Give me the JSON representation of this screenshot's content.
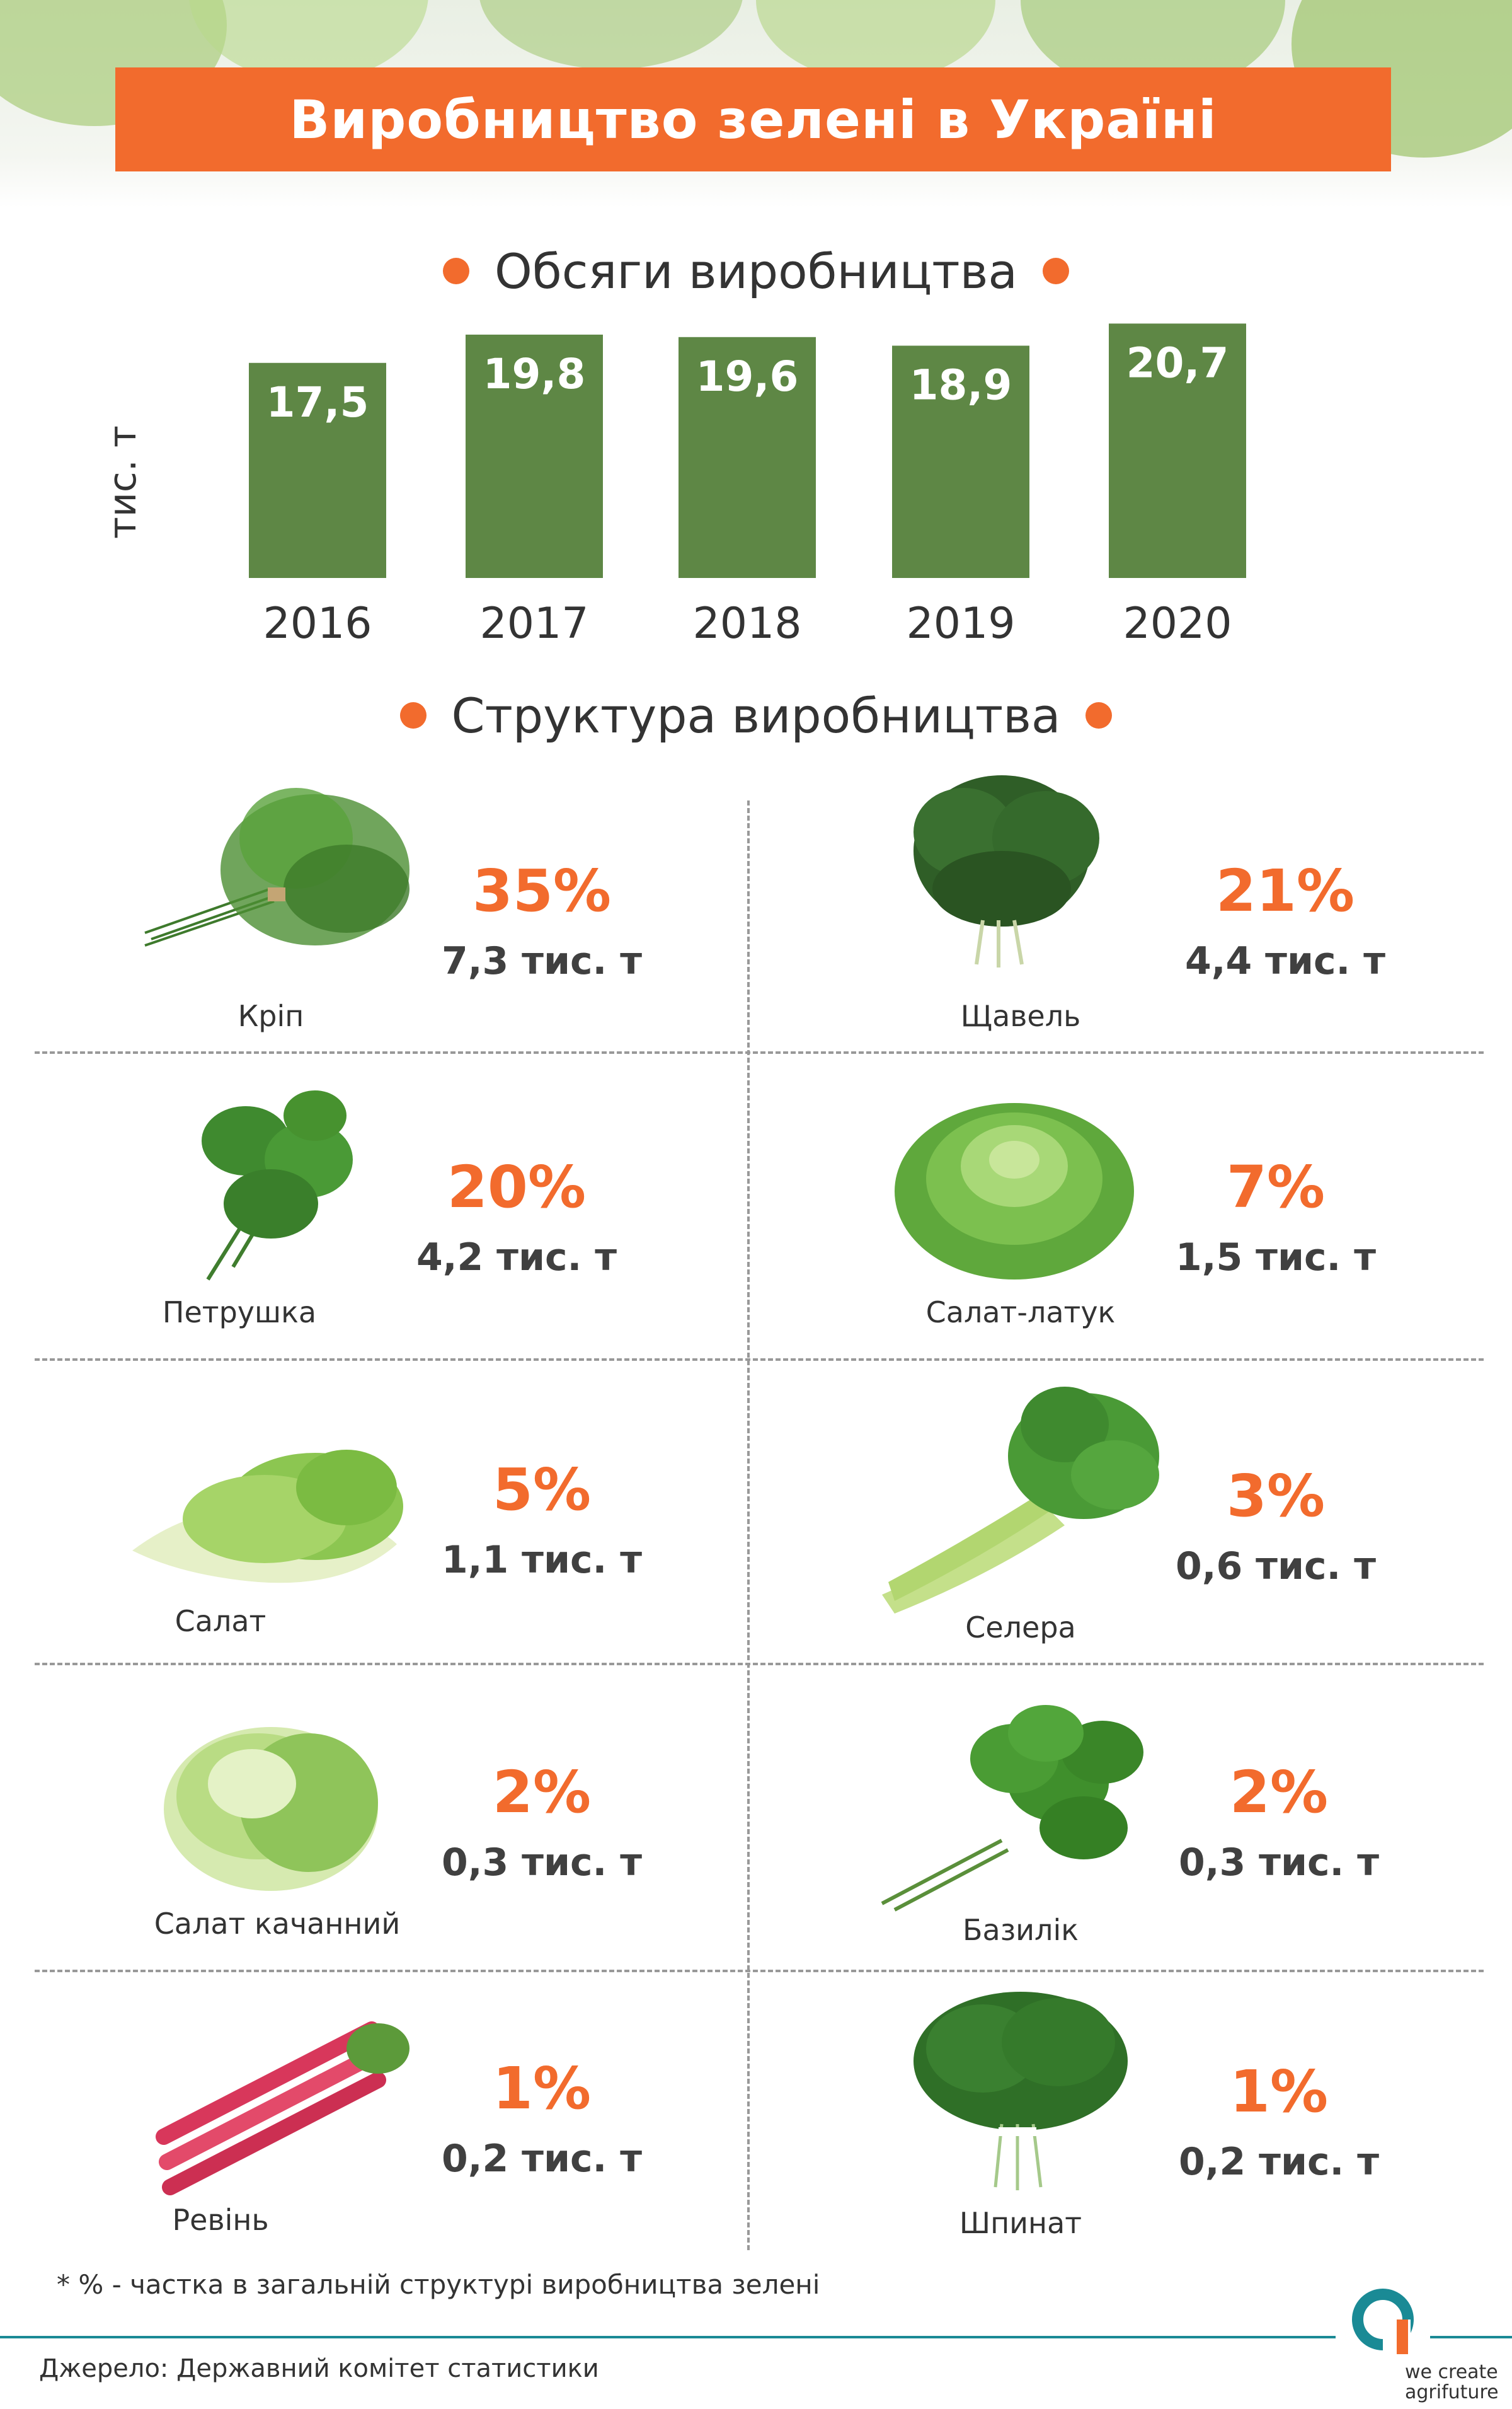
{
  "title": "Виробництво зелені в Україні",
  "section_volume": "Обсяги виробництва",
  "section_structure": "Структура виробництва",
  "colors": {
    "accent": "#f26b2d",
    "bar": "#5e8745",
    "teal": "#1a8a95"
  },
  "chart_data": {
    "type": "bar",
    "categories": [
      "2016",
      "2017",
      "2018",
      "2019",
      "2020"
    ],
    "values": [
      17.5,
      19.8,
      19.6,
      18.9,
      20.7
    ],
    "value_labels": [
      "17,5",
      "19,8",
      "19,6",
      "18,9",
      "20,7"
    ],
    "title": "Обсяги виробництва",
    "xlabel": "",
    "ylabel": "тис. т"
  },
  "items": [
    {
      "name": "Кріп",
      "pct": "35%",
      "amount": "7,3 тис. т",
      "icon": "dill-icon"
    },
    {
      "name": "Щавель",
      "pct": "21%",
      "amount": "4,4 тис. т",
      "icon": "sorrel-icon"
    },
    {
      "name": "Петрушка",
      "pct": "20%",
      "amount": "4,2 тис. т",
      "icon": "parsley-icon"
    },
    {
      "name": "Салат-латук",
      "pct": "7%",
      "amount": "1,5 тис. т",
      "icon": "butterhead-lettuce-icon"
    },
    {
      "name": "Салат",
      "pct": "5%",
      "amount": "1,1 тис. т",
      "icon": "leaf-lettuce-icon"
    },
    {
      "name": "Селера",
      "pct": "3%",
      "amount": "0,6 тис. т",
      "icon": "celery-icon"
    },
    {
      "name": "Салат качанний",
      "pct": "2%",
      "amount": "0,3 тис. т",
      "icon": "iceberg-lettuce-icon"
    },
    {
      "name": "Базилік",
      "pct": "2%",
      "amount": "0,3 тис. т",
      "icon": "basil-icon"
    },
    {
      "name": "Ревінь",
      "pct": "1%",
      "amount": "0,2 тис. т",
      "icon": "rhubarb-icon"
    },
    {
      "name": "Шпинат",
      "pct": "1%",
      "amount": "0,2 тис. т",
      "icon": "spinach-icon"
    }
  ],
  "footnote": "* % - частка в загальній структурі виробництва зелені",
  "source": "Джерело:  Державний комітет статистики",
  "brand": {
    "line1": "we create",
    "line2": "agrifuture"
  }
}
